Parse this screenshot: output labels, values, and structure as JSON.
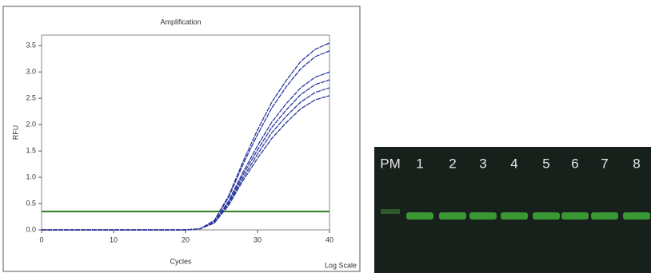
{
  "chart_data": {
    "type": "line",
    "title": "Amplification",
    "x_label": "Cycles",
    "y_label": "RFU",
    "annotation": "Log Scale",
    "x": [
      0,
      5,
      10,
      15,
      20,
      22,
      24,
      26,
      28,
      30,
      32,
      34,
      36,
      38,
      40
    ],
    "series": [
      {
        "color": "#2b3a9e",
        "values": [
          0,
          0,
          0,
          0,
          0,
          0.02,
          0.18,
          0.65,
          1.3,
          1.9,
          2.43,
          2.84,
          3.2,
          3.43,
          3.55
        ]
      },
      {
        "color": "#2b3a9e",
        "values": [
          0,
          0,
          0,
          0,
          0,
          0.02,
          0.17,
          0.62,
          1.25,
          1.81,
          2.32,
          2.72,
          3.06,
          3.29,
          3.4
        ]
      },
      {
        "color": "#2b3a9e",
        "values": [
          0,
          0,
          0,
          0,
          0,
          0.02,
          0.15,
          0.55,
          1.1,
          1.6,
          2.05,
          2.4,
          2.7,
          2.9,
          3.0
        ]
      },
      {
        "color": "#2b3a9e",
        "values": [
          0,
          0,
          0,
          0,
          0,
          0.02,
          0.14,
          0.52,
          1.05,
          1.52,
          1.95,
          2.28,
          2.57,
          2.76,
          2.85
        ]
      },
      {
        "color": "#2b3a9e",
        "values": [
          0,
          0,
          0,
          0,
          0,
          0.02,
          0.14,
          0.5,
          0.99,
          1.44,
          1.85,
          2.16,
          2.43,
          2.61,
          2.7
        ]
      },
      {
        "color": "#2b3a9e",
        "values": [
          0,
          0,
          0,
          0,
          0,
          0.02,
          0.13,
          0.47,
          0.94,
          1.36,
          1.74,
          2.04,
          2.3,
          2.47,
          2.55
        ]
      }
    ],
    "threshold": 0.35,
    "threshold_color": "#2e7d1e",
    "xlim": [
      0,
      40
    ],
    "xticks": [
      0,
      10,
      20,
      30,
      40
    ],
    "ylim": [
      0,
      3.7
    ],
    "yticks": [
      {
        "value": 0,
        "label": "0.0"
      },
      0.5,
      {
        "value": 1,
        "label": "1.0"
      },
      1.5,
      {
        "value": 2,
        "label": "2.0"
      },
      2.5,
      {
        "value": 3,
        "label": "3.0"
      },
      3.5
    ]
  },
  "gel": {
    "lanes": [
      "PM",
      "1",
      "2",
      "3",
      "4",
      "5",
      "6",
      "7",
      "8"
    ]
  }
}
